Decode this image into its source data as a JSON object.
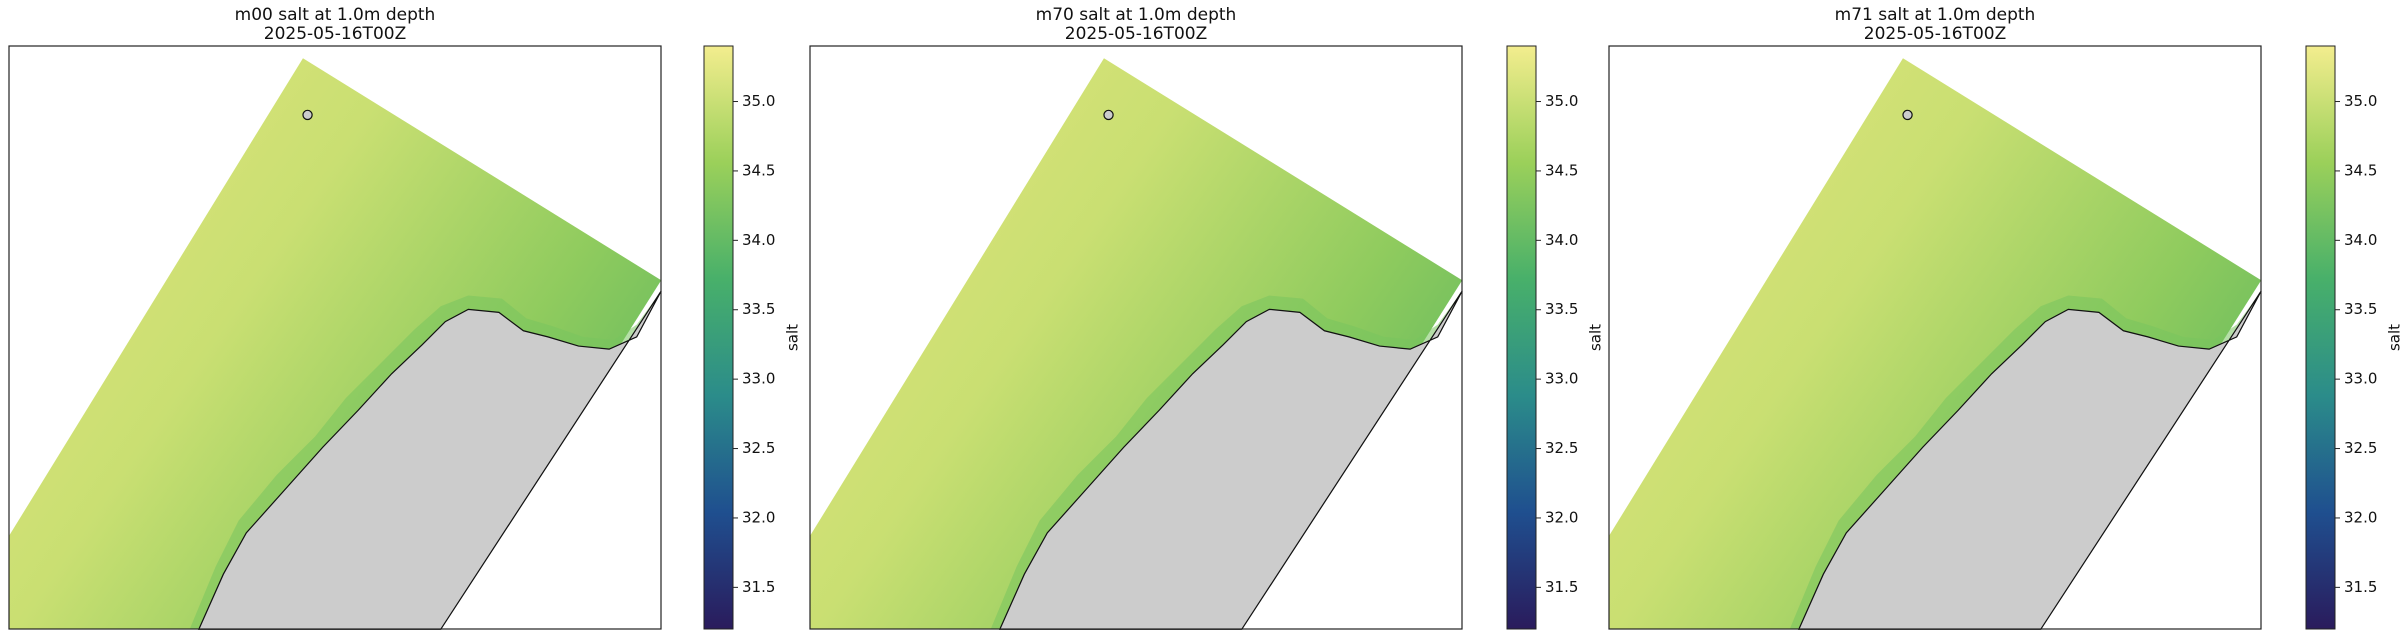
{
  "chart_data": [
    {
      "type": "map",
      "title": "m00 salt at 1.0m depth",
      "subtitle": "2025-05-16T00Z",
      "colorbar": {
        "label": "salt",
        "lim": [
          31.2,
          35.4
        ],
        "colormap": [
          "#2a1b5c",
          "#1f4f8f",
          "#2b8c8a",
          "#48b06a",
          "#9bd05a",
          "#f3ed8e"
        ],
        "ticks": [
          {
            "value": 31.5,
            "label": "31.5"
          },
          {
            "value": 32,
            "label": "32.0"
          },
          {
            "value": 32.5,
            "label": "32.5"
          },
          {
            "value": 33,
            "label": "33.0"
          },
          {
            "value": 33.5,
            "label": "33.5"
          },
          {
            "value": 34,
            "label": "34.0"
          },
          {
            "value": 34.5,
            "label": "34.5"
          },
          {
            "value": 35,
            "label": "35.0"
          }
        ]
      }
    },
    {
      "type": "map",
      "title": "m70 salt at 1.0m depth",
      "subtitle": "2025-05-16T00Z",
      "colorbar": {
        "label": "salt",
        "lim": [
          31.2,
          35.4
        ],
        "colormap": [
          "#2a1b5c",
          "#1f4f8f",
          "#2b8c8a",
          "#48b06a",
          "#9bd05a",
          "#f3ed8e"
        ],
        "ticks": [
          {
            "value": 31.5,
            "label": "31.5"
          },
          {
            "value": 32,
            "label": "32.0"
          },
          {
            "value": 32.5,
            "label": "32.5"
          },
          {
            "value": 33,
            "label": "33.0"
          },
          {
            "value": 33.5,
            "label": "33.5"
          },
          {
            "value": 34,
            "label": "34.0"
          },
          {
            "value": 34.5,
            "label": "34.5"
          },
          {
            "value": 35,
            "label": "35.0"
          }
        ]
      }
    },
    {
      "type": "map",
      "title": "m71 salt at 1.0m depth",
      "subtitle": "2025-05-16T00Z",
      "colorbar": {
        "label": "salt",
        "lim": [
          31.2,
          35.4
        ],
        "colormap": [
          "#2a1b5c",
          "#1f4f8f",
          "#2b8c8a",
          "#48b06a",
          "#9bd05a",
          "#f3ed8e"
        ],
        "ticks": [
          {
            "value": 31.5,
            "label": "31.5"
          },
          {
            "value": 32,
            "label": "32.0"
          },
          {
            "value": 32.5,
            "label": "32.5"
          },
          {
            "value": 33,
            "label": "33.0"
          },
          {
            "value": 33.5,
            "label": "33.5"
          },
          {
            "value": 34,
            "label": "34.0"
          },
          {
            "value": 34.5,
            "label": "34.5"
          },
          {
            "value": 35,
            "label": "35.0"
          }
        ]
      }
    }
  ]
}
